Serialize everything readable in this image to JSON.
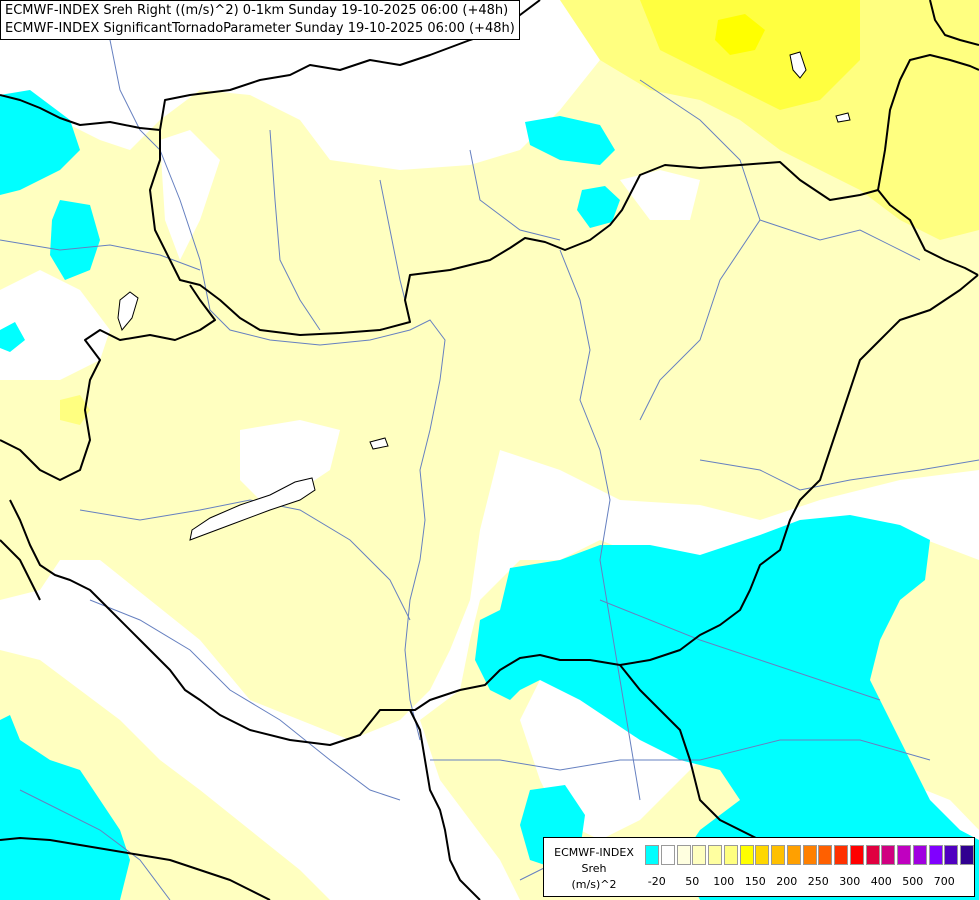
{
  "map": {
    "title_lines": [
      "ECMWF-INDEX Sreh Right ((m/s)^2) 0-1km Sunday 19-10-2025 06:00 (+48h)",
      "ECMWF-INDEX SignificantTornadoParameter Sunday 19-10-2025 06:00 (+48h)"
    ],
    "background_color": "#ffffff",
    "field_colors": {
      "cyan": "#00ffff",
      "pale_yellow": "#ffffc0",
      "light_yellow": "#ffff80",
      "yellow": "#ffff40",
      "bright_yellow": "#ffff00"
    },
    "border_color": "#000000",
    "river_color": "#6680c0"
  },
  "legend": {
    "line1": "ECMWF-INDEX",
    "line2": "Sreh",
    "line3": "(m/s)^2",
    "colors": [
      "#00ffff",
      "#ffffff",
      "#ffffe0",
      "#ffffc0",
      "#ffffa0",
      "#ffff80",
      "#ffff00",
      "#ffd700",
      "#ffc000",
      "#ffa000",
      "#ff8000",
      "#ff6000",
      "#ff3000",
      "#ff0000",
      "#e00040",
      "#d00080",
      "#c000c0",
      "#a000e0",
      "#8000ff",
      "#5000c0",
      "#300090"
    ],
    "tick_labels": [
      "-20",
      "50",
      "100",
      "150",
      "200",
      "250",
      "300",
      "400",
      "500",
      "700"
    ]
  }
}
